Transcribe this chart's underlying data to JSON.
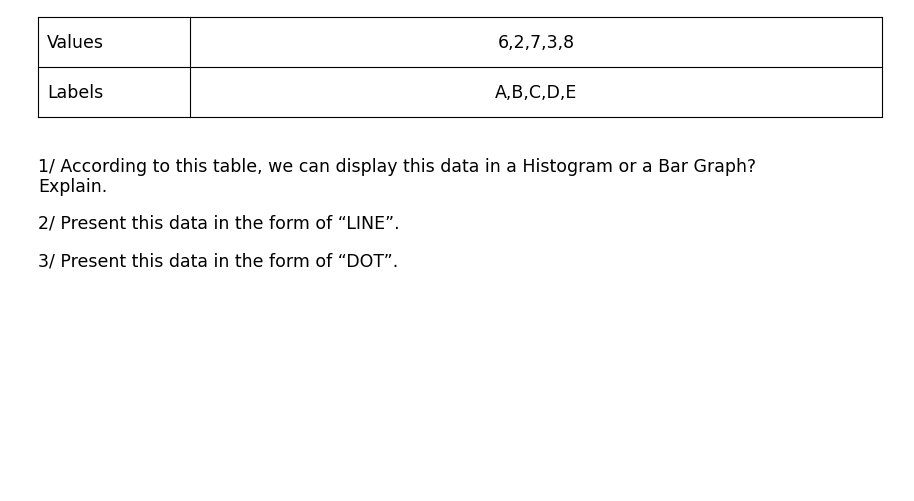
{
  "table_row1_label": "Values",
  "table_row1_value": "6,2,7,3,8",
  "table_row2_label": "Labels",
  "table_row2_value": "A,B,C,D,E",
  "q1_line1": "1/ According to this table, we can display this data in a Histogram or a Bar Graph?",
  "q1_line2": "Explain.",
  "question2": "2/ Present this data in the form of “LINE”.",
  "question3": "3/ Present this data in the form of “DOT”.",
  "background_color": "#ffffff",
  "text_color": "#000000",
  "border_color": "#000000",
  "font_size": 12.5
}
